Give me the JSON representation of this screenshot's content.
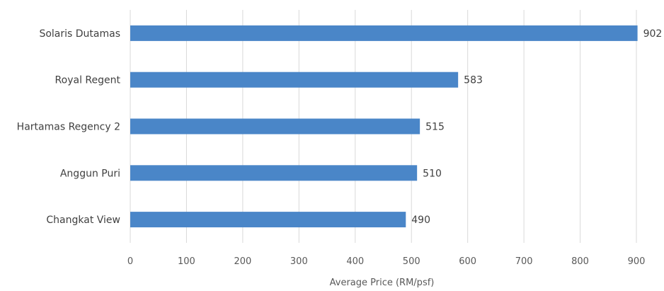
{
  "chart_data": {
    "type": "bar",
    "orientation": "horizontal",
    "categories": [
      "Solaris Dutamas",
      "Royal Regent",
      "Hartamas Regency 2",
      "Anggun Puri",
      "Changkat View"
    ],
    "values": [
      902,
      583,
      515,
      510,
      490
    ],
    "xlabel": "Average Price (RM/psf)",
    "xlim": [
      0,
      900
    ],
    "xticks": [
      0,
      100,
      200,
      300,
      400,
      500,
      600,
      700,
      800,
      900
    ],
    "grid": true,
    "bar_color": "#4a86c8",
    "data_labels": true
  }
}
